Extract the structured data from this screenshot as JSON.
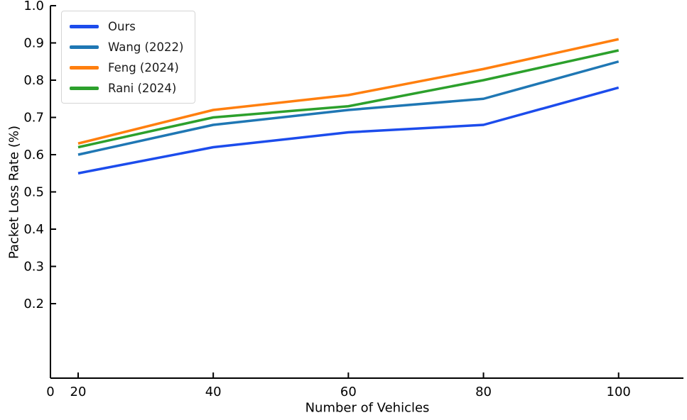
{
  "figure": {
    "xlabel": "Number of Vehicles",
    "ylabel": "Packet Loss Rate (%)",
    "background_color": "#ffffff",
    "axis_color": "#000000",
    "tick_label_color": "#000000"
  },
  "chart_data": {
    "type": "line",
    "title": "",
    "xlabel": "Number of Vehicles",
    "ylabel": "Packet Loss Rate (%)",
    "x": [
      20,
      40,
      60,
      80,
      100
    ],
    "series": [
      {
        "name": "Ours",
        "color": "#1c4cec",
        "values": [
          0.55,
          0.62,
          0.66,
          0.68,
          0.78
        ]
      },
      {
        "name": "Wang (2022)",
        "color": "#1f77b4",
        "values": [
          0.6,
          0.68,
          0.72,
          0.75,
          0.85
        ]
      },
      {
        "name": "Feng (2024)",
        "color": "#ff7f0e",
        "values": [
          0.63,
          0.72,
          0.76,
          0.83,
          0.91
        ]
      },
      {
        "name": "Rani (2024)",
        "color": "#2ca02c",
        "values": [
          0.62,
          0.7,
          0.73,
          0.8,
          0.88
        ]
      }
    ],
    "xticks": {
      "values": [
        0,
        20,
        40,
        60,
        80,
        100
      ],
      "labels": [
        "0",
        "20",
        "40",
        "60",
        "80",
        "100"
      ]
    },
    "yticks": {
      "values": [
        0.2,
        0.3,
        0.4,
        0.5,
        0.6,
        0.7,
        0.8,
        0.9,
        1.0
      ],
      "labels": [
        "0.2",
        "0.3",
        "0.4",
        "0.5",
        "0.6",
        "0.7",
        "0.8",
        "0.9",
        "1.0"
      ]
    },
    "xlim": [
      15.9,
      109.6
    ],
    "ylim": [
      0.0,
      1.0
    ],
    "grid": false,
    "tick_direction": "in",
    "legend": {
      "position": "upper left",
      "entries": [
        "Ours",
        "Wang (2022)",
        "Feng (2024)",
        "Rani (2024)"
      ]
    }
  }
}
